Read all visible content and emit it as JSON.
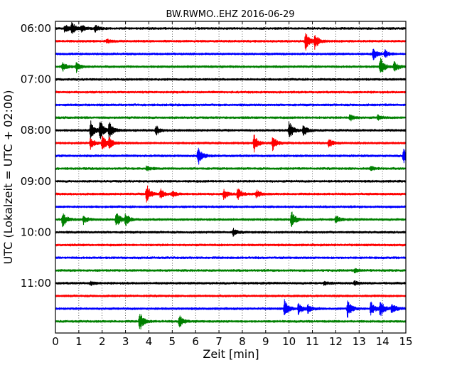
{
  "chart_data": {
    "type": "line",
    "title": "BW.RWMO..EHZ 2016-06-29",
    "xlabel": "Zeit  [min]",
    "ylabel": "UTC (Lokalzeit = UTC + 02:00)",
    "xlim": [
      0,
      15
    ],
    "x_ticks": [
      0,
      1,
      2,
      3,
      4,
      5,
      6,
      7,
      8,
      9,
      10,
      11,
      12,
      13,
      14,
      15
    ],
    "x_tick_labels": [
      "0",
      "1",
      "2",
      "3",
      "4",
      "5",
      "6",
      "7",
      "8",
      "9",
      "10",
      "11",
      "12",
      "13",
      "14",
      "15"
    ],
    "y_tick_labels": [
      "06:00",
      "07:00",
      "08:00",
      "09:00",
      "10:00",
      "11:00"
    ],
    "y_tick_rows": [
      0,
      4,
      8,
      12,
      16,
      20
    ],
    "grid": "vertical dotted",
    "row_colors": [
      "#000000",
      "#ff0000",
      "#0000ff",
      "#008000"
    ],
    "rows": [
      {
        "start": "06:00",
        "color": "black",
        "events": [
          {
            "t": 0.4,
            "amp": 0.45
          },
          {
            "t": 0.7,
            "amp": 0.55
          },
          {
            "t": 1.1,
            "amp": 0.35
          },
          {
            "t": 1.7,
            "amp": 0.35
          }
        ]
      },
      {
        "start": "06:15",
        "color": "red",
        "events": [
          {
            "t": 2.2,
            "amp": 0.2
          },
          {
            "t": 10.7,
            "amp": 1.0
          },
          {
            "t": 11.1,
            "amp": 0.8
          }
        ]
      },
      {
        "start": "06:30",
        "color": "blue",
        "events": [
          {
            "t": 13.6,
            "amp": 0.6
          },
          {
            "t": 14.1,
            "amp": 0.4
          }
        ]
      },
      {
        "start": "06:45",
        "color": "green",
        "events": [
          {
            "t": 0.3,
            "amp": 0.5
          },
          {
            "t": 0.9,
            "amp": 0.5
          },
          {
            "t": 13.9,
            "amp": 1.0
          },
          {
            "t": 14.5,
            "amp": 0.5
          }
        ]
      },
      {
        "start": "07:00",
        "color": "black",
        "events": []
      },
      {
        "start": "07:15",
        "color": "red",
        "events": []
      },
      {
        "start": "07:30",
        "color": "blue",
        "events": []
      },
      {
        "start": "07:45",
        "color": "green",
        "events": [
          {
            "t": 12.6,
            "amp": 0.35
          },
          {
            "t": 13.8,
            "amp": 0.25
          }
        ]
      },
      {
        "start": "08:00",
        "color": "black",
        "events": [
          {
            "t": 1.5,
            "amp": 1.0
          },
          {
            "t": 1.9,
            "amp": 1.0
          },
          {
            "t": 2.3,
            "amp": 0.9
          },
          {
            "t": 4.3,
            "amp": 0.5
          },
          {
            "t": 10.0,
            "amp": 1.0
          },
          {
            "t": 10.6,
            "amp": 0.6
          }
        ]
      },
      {
        "start": "08:15",
        "color": "red",
        "events": [
          {
            "t": 1.5,
            "amp": 0.6
          },
          {
            "t": 2.0,
            "amp": 0.8
          },
          {
            "t": 2.3,
            "amp": 0.5
          },
          {
            "t": 8.5,
            "amp": 0.9
          },
          {
            "t": 9.3,
            "amp": 0.7
          },
          {
            "t": 11.7,
            "amp": 0.5
          }
        ]
      },
      {
        "start": "08:30",
        "color": "blue",
        "events": [
          {
            "t": 6.1,
            "amp": 1.0
          },
          {
            "t": 14.9,
            "amp": 1.0
          }
        ]
      },
      {
        "start": "08:45",
        "color": "green",
        "events": [
          {
            "t": 3.9,
            "amp": 0.25
          },
          {
            "t": 13.5,
            "amp": 0.25
          }
        ]
      },
      {
        "start": "09:00",
        "color": "black",
        "events": []
      },
      {
        "start": "09:15",
        "color": "red",
        "events": [
          {
            "t": 3.9,
            "amp": 1.0
          },
          {
            "t": 4.5,
            "amp": 0.5
          },
          {
            "t": 5.0,
            "amp": 0.3
          },
          {
            "t": 7.2,
            "amp": 0.5
          },
          {
            "t": 7.8,
            "amp": 0.6
          },
          {
            "t": 8.6,
            "amp": 0.4
          }
        ]
      },
      {
        "start": "09:30",
        "color": "blue",
        "events": []
      },
      {
        "start": "09:45",
        "color": "green",
        "events": [
          {
            "t": 0.3,
            "amp": 0.8
          },
          {
            "t": 1.2,
            "amp": 0.4
          },
          {
            "t": 2.6,
            "amp": 0.8
          },
          {
            "t": 3.0,
            "amp": 0.6
          },
          {
            "t": 10.1,
            "amp": 0.9
          },
          {
            "t": 12.0,
            "amp": 0.4
          }
        ]
      },
      {
        "start": "10:00",
        "color": "black",
        "events": [
          {
            "t": 7.6,
            "amp": 0.35
          }
        ]
      },
      {
        "start": "10:15",
        "color": "red",
        "events": []
      },
      {
        "start": "10:30",
        "color": "blue",
        "events": []
      },
      {
        "start": "10:45",
        "color": "green",
        "events": [
          {
            "t": 12.8,
            "amp": 0.2
          }
        ]
      },
      {
        "start": "11:00",
        "color": "black",
        "events": [
          {
            "t": 1.5,
            "amp": 0.2
          },
          {
            "t": 11.5,
            "amp": 0.2
          },
          {
            "t": 12.8,
            "amp": 0.25
          }
        ]
      },
      {
        "start": "11:15",
        "color": "red",
        "events": []
      },
      {
        "start": "11:30",
        "color": "blue",
        "events": [
          {
            "t": 9.8,
            "amp": 0.9
          },
          {
            "t": 10.4,
            "amp": 0.6
          },
          {
            "t": 10.8,
            "amp": 0.4
          },
          {
            "t": 12.5,
            "amp": 1.0
          },
          {
            "t": 13.5,
            "amp": 0.7
          },
          {
            "t": 13.9,
            "amp": 0.9
          },
          {
            "t": 14.4,
            "amp": 0.6
          }
        ]
      },
      {
        "start": "11:45",
        "color": "green",
        "events": [
          {
            "t": 3.6,
            "amp": 1.0
          },
          {
            "t": 5.3,
            "amp": 0.7
          }
        ]
      }
    ]
  }
}
